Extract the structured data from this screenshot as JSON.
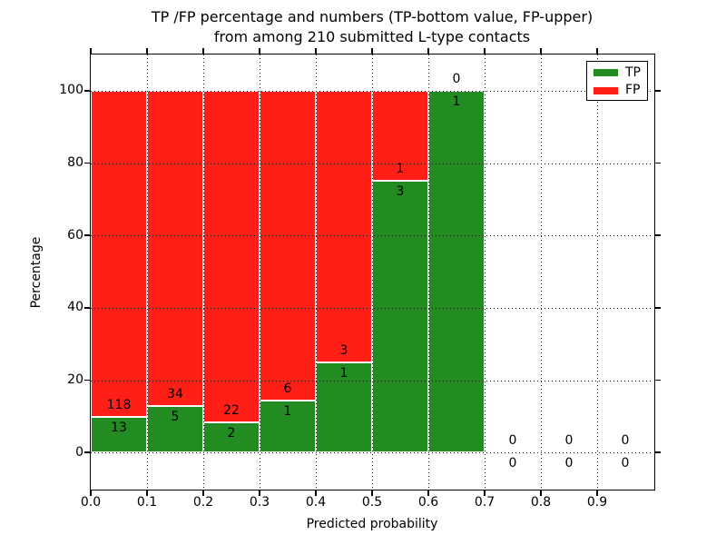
{
  "title": {
    "line1": "TP /FP percentage and numbers (TP-bottom value, FP-upper)",
    "line2": "from among 210 submitted L-type contacts"
  },
  "colors": {
    "tp_green": "#228b22",
    "fp_red": "#ff1f17",
    "grid": "#1a1a1a",
    "text": "#000000",
    "background": "#ffffff"
  },
  "chart_data": {
    "type": "bar",
    "stacked": true,
    "title": "TP /FP percentage and numbers (TP-bottom value, FP-upper)\nfrom among 210 submitted L-type contacts",
    "xlabel": "Predicted probability",
    "ylabel": "Percentage",
    "xlim": [
      0.0,
      1.0
    ],
    "ylim": [
      -10,
      110
    ],
    "xticks": [
      0.0,
      0.1,
      0.2,
      0.3,
      0.4,
      0.5,
      0.6,
      0.7,
      0.8,
      0.9
    ],
    "xtick_labels": [
      "0.0",
      "0.1",
      "0.2",
      "0.3",
      "0.4",
      "0.5",
      "0.6",
      "0.7",
      "0.8",
      "0.9"
    ],
    "yticks": [
      0,
      20,
      40,
      60,
      80,
      100
    ],
    "grid": true,
    "grid_style": "dotted",
    "legend_position": "upper right",
    "series": [
      {
        "name": "TP",
        "color": "#228b22"
      },
      {
        "name": "FP",
        "color": "#ff1f17"
      }
    ],
    "total_contacts": 210,
    "bins": [
      {
        "x0": 0.0,
        "x1": 0.1,
        "tp": 13,
        "fp": 118,
        "tp_pct": 9.92,
        "fp_pct": 90.08
      },
      {
        "x0": 0.1,
        "x1": 0.2,
        "tp": 5,
        "fp": 34,
        "tp_pct": 12.82,
        "fp_pct": 87.18
      },
      {
        "x0": 0.2,
        "x1": 0.3,
        "tp": 2,
        "fp": 22,
        "tp_pct": 8.33,
        "fp_pct": 91.67
      },
      {
        "x0": 0.3,
        "x1": 0.4,
        "tp": 1,
        "fp": 6,
        "tp_pct": 14.29,
        "fp_pct": 85.71
      },
      {
        "x0": 0.4,
        "x1": 0.5,
        "tp": 1,
        "fp": 3,
        "tp_pct": 25.0,
        "fp_pct": 75.0
      },
      {
        "x0": 0.5,
        "x1": 0.6,
        "tp": 3,
        "fp": 1,
        "tp_pct": 75.0,
        "fp_pct": 25.0
      },
      {
        "x0": 0.6,
        "x1": 0.7,
        "tp": 1,
        "fp": 0,
        "tp_pct": 100.0,
        "fp_pct": 0.0
      },
      {
        "x0": 0.7,
        "x1": 0.8,
        "tp": 0,
        "fp": 0,
        "tp_pct": 0.0,
        "fp_pct": 0.0
      },
      {
        "x0": 0.8,
        "x1": 0.9,
        "tp": 0,
        "fp": 0,
        "tp_pct": 0.0,
        "fp_pct": 0.0
      },
      {
        "x0": 0.9,
        "x1": 1.0,
        "tp": 0,
        "fp": 0,
        "tp_pct": 0.0,
        "fp_pct": 0.0
      }
    ]
  }
}
